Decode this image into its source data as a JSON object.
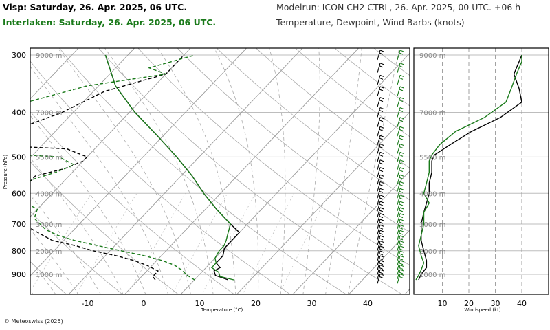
{
  "header": {
    "line1_left": "Visp: Saturday, 26. Apr. 2025, 06 UTC.",
    "line2_left": "Interlaken: Saturday, 26. Apr. 2025, 06 UTC.",
    "line1_right": "Modelrun: ICON CH2 CTRL, 26. Apr. 2025, 00 UTC. +06 h",
    "line2_right": "Temperature, Dewpoint, Wind Barbs (knots)",
    "copyright": "© Meteoswiss (2025)"
  },
  "colors": {
    "visp": "#000000",
    "interlaken": "#1a7a1a",
    "grid": "#bdbdbd",
    "frame": "#000000"
  },
  "chart_data": [
    {
      "type": "line",
      "subtype": "skew-t",
      "ylabel": "Pressure (hPa)",
      "xlabel": "Temperature (°C)",
      "pressure_ticks": [
        300,
        400,
        500,
        600,
        700,
        800,
        900
      ],
      "temperature_ticks": [
        -10,
        0,
        10,
        20,
        30,
        40
      ],
      "altitude_labels": [
        {
          "text": "9000 m",
          "p": 300
        },
        {
          "text": "7000 m",
          "p": 400
        },
        {
          "text": "5500 m",
          "p": 500
        },
        {
          "text": "4000 m",
          "p": 600
        },
        {
          "text": "3000 m",
          "p": 700
        },
        {
          "text": "2000 m",
          "p": 800
        },
        {
          "text": "1000 m",
          "p": 900
        }
      ],
      "series": [
        {
          "name": "Visp",
          "kind": "temperature",
          "p": [
            925,
            905,
            885,
            870,
            850,
            820,
            790,
            760,
            730,
            700,
            650,
            600,
            550,
            500,
            450,
            400,
            350,
            300
          ],
          "t": [
            16,
            13,
            12,
            12.5,
            11,
            11,
            10,
            10,
            10,
            7,
            2,
            -3,
            -8,
            -14,
            -21,
            -29,
            -37,
            -44
          ]
        },
        {
          "name": "Visp",
          "kind": "dewpoint",
          "p": [
            925,
            910,
            885,
            860,
            840,
            820,
            800,
            780,
            760,
            730,
            700,
            670,
            640,
            610,
            590,
            570,
            550,
            530,
            510,
            500,
            480,
            470,
            400,
            360,
            330,
            310,
            300
          ],
          "t": [
            3,
            2,
            2,
            -1,
            -4,
            -8,
            -13,
            -17,
            -22,
            -26,
            -30,
            -31,
            -36,
            -38,
            -38,
            -36,
            -36,
            -32,
            -30,
            -30,
            -35,
            -52,
            -42,
            -38,
            -30,
            -30,
            -30
          ]
        },
        {
          "name": "Interlaken",
          "kind": "temperature",
          "p": [
            925,
            910,
            890,
            870,
            850,
            830,
            800,
            780,
            760,
            730,
            700,
            650,
            600,
            550,
            500,
            450,
            400,
            350,
            300
          ],
          "t": [
            17,
            14,
            13,
            11,
            11,
            10,
            9.5,
            9.5,
            9,
            8,
            7,
            2,
            -3,
            -8,
            -14,
            -21,
            -29,
            -37,
            -44
          ]
        },
        {
          "name": "Interlaken",
          "kind": "dewpoint",
          "p": [
            925,
            905,
            880,
            860,
            840,
            820,
            800,
            780,
            760,
            740,
            720,
            700,
            680,
            650,
            630,
            600,
            580,
            560,
            540,
            520,
            500,
            490,
            450,
            380,
            350,
            330,
            320,
            300
          ],
          "t": [
            10,
            8,
            6,
            4,
            1,
            -3,
            -8,
            -13,
            -18,
            -22,
            -25,
            -27,
            -29,
            -30,
            -33,
            -36,
            -37,
            -36,
            -33,
            -31,
            -35,
            -48,
            -55,
            -50,
            -42,
            -30,
            -34,
            -28
          ]
        }
      ]
    },
    {
      "type": "line",
      "xlabel": "Windspeed (kt)",
      "x_ticks": [
        10,
        20,
        30,
        40
      ],
      "altitude_labels": [
        "9000 m",
        "7000 m",
        "5500 m",
        "4000 m",
        "3000 m",
        "2000 m",
        "1000 m"
      ],
      "series": [
        {
          "name": "Visp",
          "p": [
            925,
            900,
            870,
            840,
            800,
            760,
            720,
            700,
            660,
            630,
            600,
            570,
            540,
            510,
            495,
            470,
            440,
            410,
            380,
            355,
            330,
            310,
            300
          ],
          "speed": [
            1,
            2,
            4,
            4,
            3,
            2,
            2,
            2,
            3,
            4,
            5,
            5,
            6,
            6,
            7,
            13,
            21,
            32,
            40,
            39,
            37,
            39,
            40
          ]
        },
        {
          "name": "Interlaken",
          "p": [
            925,
            905,
            880,
            850,
            820,
            780,
            740,
            700,
            660,
            630,
            600,
            570,
            540,
            510,
            495,
            470,
            440,
            410,
            380,
            355,
            330,
            310,
            300
          ],
          "speed": [
            0,
            1,
            2,
            3,
            2,
            1,
            2,
            3,
            3,
            5,
            3,
            4,
            5,
            5,
            6,
            9,
            15,
            26,
            34,
            36,
            38,
            40,
            40
          ]
        }
      ]
    }
  ],
  "wind_barbs": {
    "visp_p": [
      920,
      900,
      880,
      860,
      840,
      820,
      800,
      780,
      760,
      740,
      720,
      700,
      680,
      660,
      640,
      620,
      600,
      580,
      560,
      540,
      520,
      500,
      480,
      460,
      440,
      420,
      400,
      380,
      360,
      340,
      320,
      300
    ],
    "interlaken_p": [
      920,
      900,
      880,
      860,
      840,
      820,
      800,
      780,
      760,
      740,
      720,
      700,
      680,
      660,
      640,
      620,
      600,
      580,
      560,
      540,
      520,
      500,
      480,
      460,
      440,
      420,
      400,
      380,
      360,
      340,
      320,
      300
    ]
  }
}
